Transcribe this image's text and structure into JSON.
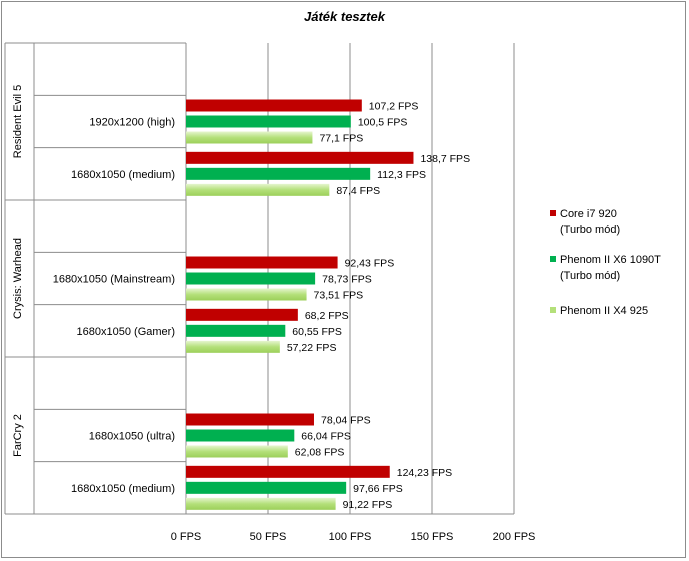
{
  "chart_data": {
    "type": "bar",
    "orientation": "horizontal",
    "title": "Játék tesztek",
    "groups": [
      {
        "name": "Resident Evil 5",
        "categories": [
          {
            "label": "1920x1200 (high)",
            "values": [
              107.2,
              100.5,
              77.1
            ],
            "labels": [
              "107,2 FPS",
              "100,5 FPS",
              "77,1 FPS"
            ]
          },
          {
            "label": "1680x1050 (medium)",
            "values": [
              138.7,
              112.3,
              87.4
            ],
            "labels": [
              "138,7 FPS",
              "112,3 FPS",
              "87,4 FPS"
            ]
          }
        ]
      },
      {
        "name": "Crysis: Warhead",
        "categories": [
          {
            "label": "1680x1050 (Mainstream)",
            "values": [
              92.43,
              78.73,
              73.51
            ],
            "labels": [
              "92,43 FPS",
              "78,73 FPS",
              "73,51 FPS"
            ]
          },
          {
            "label": "1680x1050 (Gamer)",
            "values": [
              68.2,
              60.55,
              57.22
            ],
            "labels": [
              "68,2 FPS",
              "60,55 FPS",
              "57,22 FPS"
            ]
          }
        ]
      },
      {
        "name": "FarCry 2",
        "categories": [
          {
            "label": "1680x1050 (ultra)",
            "values": [
              78.04,
              66.04,
              62.08
            ],
            "labels": [
              "78,04 FPS",
              "66,04 FPS",
              "62,08 FPS"
            ]
          },
          {
            "label": "1680x1050 (medium)",
            "values": [
              124.23,
              97.66,
              91.22
            ],
            "labels": [
              "124,23 FPS",
              "97,66 FPS",
              "91,22 FPS"
            ]
          }
        ]
      }
    ],
    "series": [
      {
        "name": "Core i7 920\n(Turbo mód)",
        "color": "#c00000"
      },
      {
        "name": "Phenom II X6 1090T\n(Turbo mód)",
        "color": "#00b050"
      },
      {
        "name": "Phenom II X4 925",
        "color": "#b4e07a"
      }
    ],
    "xlim": [
      0,
      200
    ],
    "xticks": [
      0,
      50,
      100,
      150,
      200
    ],
    "xtick_labels": [
      "0 FPS",
      "50 FPS",
      "100 FPS",
      "150 FPS",
      "200 FPS"
    ],
    "grid": true,
    "legend": "right"
  }
}
